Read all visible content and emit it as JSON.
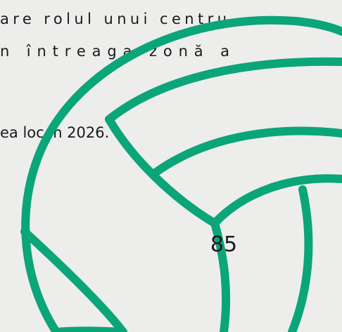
{
  "document": {
    "lines": [
      "are rolul unui centru",
      "n întreaga zonă a",
      "ea loc în 2026."
    ],
    "page_number": "85"
  }
}
